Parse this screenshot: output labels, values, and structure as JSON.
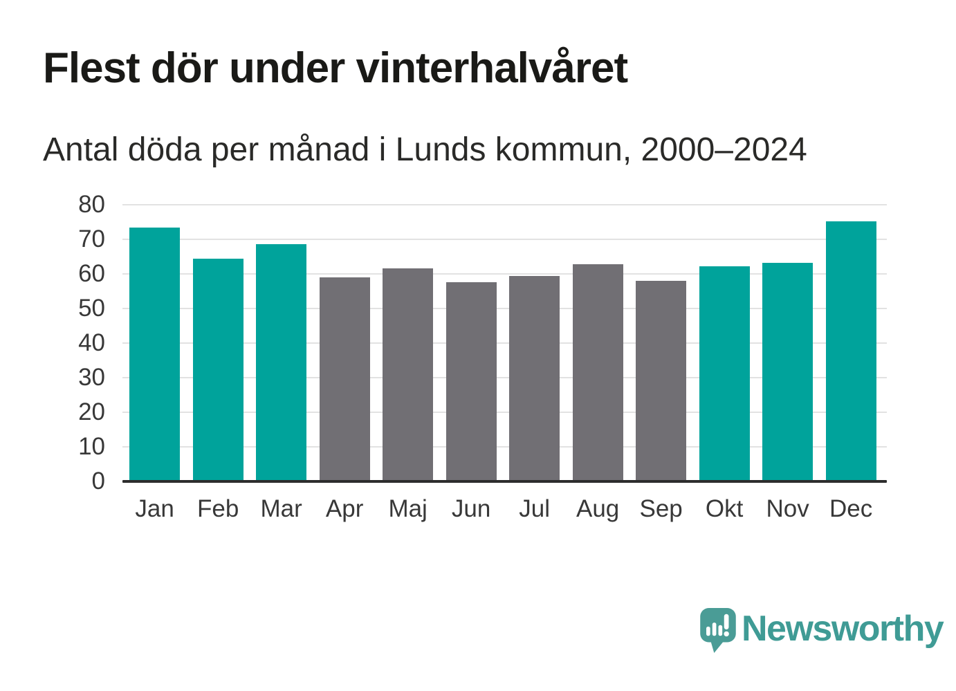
{
  "chart_data": {
    "type": "bar",
    "title": "Flest dör under vinterhalvåret",
    "subtitle": "Antal döda per månad i Lunds kommun, 2000–2024",
    "categories": [
      "Jan",
      "Feb",
      "Mar",
      "Apr",
      "Maj",
      "Jun",
      "Jul",
      "Aug",
      "Sep",
      "Okt",
      "Nov",
      "Dec"
    ],
    "values": [
      73.5,
      64.4,
      68.6,
      59.1,
      61.6,
      57.6,
      59.5,
      62.8,
      58.0,
      62.2,
      63.2,
      75.2
    ],
    "winter_highlight": [
      true,
      true,
      true,
      false,
      false,
      false,
      false,
      false,
      false,
      true,
      true,
      true
    ],
    "ylim": [
      0,
      80
    ],
    "yticks": [
      0,
      10,
      20,
      30,
      40,
      50,
      60,
      70,
      80
    ],
    "grid": "horizontal",
    "legend": "none",
    "xlabel": "",
    "ylabel": ""
  },
  "colors": {
    "bar_winter": "#00a39b",
    "bar_summer": "#716f74",
    "axis_line": "#2d2d2d",
    "gridline": "#e2e2e2",
    "tick_label": "#383838",
    "title_text": "#1a1a17",
    "brand_teal": "#3f9b95",
    "logo_bubble": "#4a9c96"
  },
  "brand": {
    "name": "Newsworthy",
    "logo_icon": "bar-chart-speech-bubble-icon"
  }
}
